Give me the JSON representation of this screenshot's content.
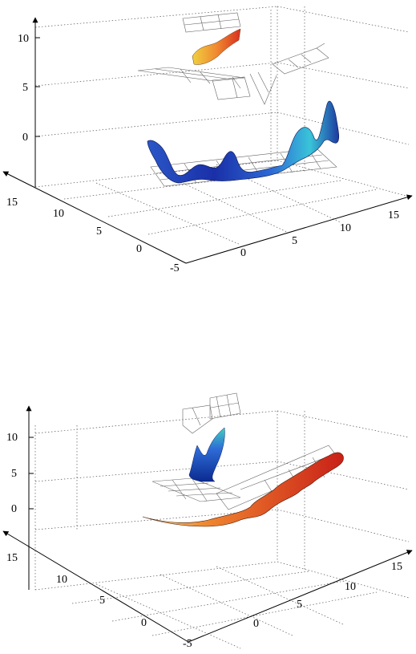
{
  "chart_data": [
    {
      "type": "surface",
      "title": "",
      "z_ticks": [
        "10",
        "5",
        "0"
      ],
      "x_ticks": [
        "15",
        "10",
        "5",
        "0",
        "-5"
      ],
      "y_ticks": [
        "0",
        "5",
        "10",
        "15"
      ],
      "zlim": [
        -3,
        12
      ],
      "xlim": [
        -5,
        15
      ],
      "ylim": [
        -5,
        15
      ],
      "grid": true,
      "surfaces": [
        {
          "name_hint": "upper-small-patch",
          "colormap": "jet-warm",
          "z_level": 10
        },
        {
          "name_hint": "main-trough-surface",
          "colormap": "jet-cool",
          "z_level": 0
        }
      ]
    },
    {
      "type": "surface",
      "title": "",
      "z_ticks": [
        "10",
        "5",
        "0"
      ],
      "x_ticks": [
        "15",
        "10",
        "5",
        "0",
        "-5"
      ],
      "y_ticks": [
        "0",
        "5",
        "10",
        "15"
      ],
      "zlim": [
        -3,
        12
      ],
      "xlim": [
        -5,
        15
      ],
      "ylim": [
        -5,
        15
      ],
      "grid": true,
      "surfaces": [
        {
          "name_hint": "upper-peak",
          "colormap": "jet-cool",
          "z_level": 7
        },
        {
          "name_hint": "lower-ridge-surface",
          "colormap": "jet-warm",
          "z_level": 0
        }
      ]
    }
  ],
  "colors": {
    "blue_dark": "#1a2fa8",
    "blue": "#2e6bd6",
    "cyan": "#39c4d8",
    "green": "#8ad27a",
    "yellow": "#f0d040",
    "orange": "#f08a30",
    "red": "#d83020"
  }
}
